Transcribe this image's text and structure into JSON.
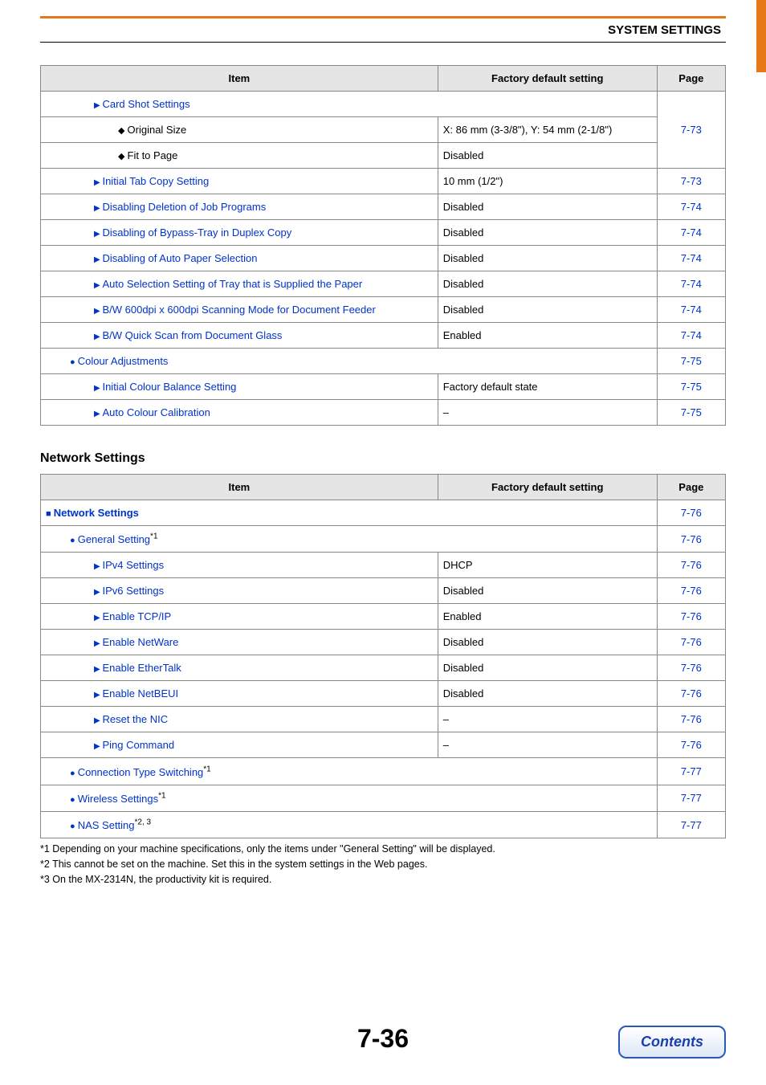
{
  "header": {
    "title": "SYSTEM SETTINGS"
  },
  "table1": {
    "headers": {
      "item": "Item",
      "default": "Factory default setting",
      "page": "Page"
    },
    "rows": [
      {
        "kind": "span2",
        "marker": "tri",
        "link": true,
        "indent": 2,
        "label": "Card Shot Settings",
        "page": ""
      },
      {
        "kind": "row",
        "marker": "dia",
        "link": false,
        "indent": 3,
        "label": "Original Size",
        "default": "X: 86 mm (3-3/8\"), Y: 54 mm (2-1/8\")",
        "page": "7-73",
        "cls": "no-bottom"
      },
      {
        "kind": "row",
        "marker": "dia",
        "link": false,
        "indent": 3,
        "label": "Fit to Page",
        "default": "Disabled",
        "page": "",
        "cls": "no-top"
      },
      {
        "kind": "row",
        "marker": "tri",
        "link": true,
        "indent": 2,
        "label": "Initial Tab Copy Setting",
        "default": "10 mm (1/2\")",
        "page": "7-73"
      },
      {
        "kind": "row",
        "marker": "tri",
        "link": true,
        "indent": 2,
        "label": "Disabling Deletion of Job Programs",
        "default": "Disabled",
        "page": "7-74"
      },
      {
        "kind": "row",
        "marker": "tri",
        "link": true,
        "indent": 2,
        "label": "Disabling of Bypass-Tray in Duplex Copy",
        "default": "Disabled",
        "page": "7-74"
      },
      {
        "kind": "row",
        "marker": "tri",
        "link": true,
        "indent": 2,
        "label": "Disabling of Auto Paper Selection",
        "default": "Disabled",
        "page": "7-74"
      },
      {
        "kind": "row",
        "marker": "tri",
        "link": true,
        "indent": 2,
        "label": "Auto Selection Setting of Tray that is Supplied the Paper",
        "default": "Disabled",
        "page": "7-74"
      },
      {
        "kind": "row",
        "marker": "tri",
        "link": true,
        "indent": 2,
        "label": "B/W 600dpi x 600dpi Scanning Mode for Document Feeder",
        "default": "Disabled",
        "page": "7-74"
      },
      {
        "kind": "row",
        "marker": "tri",
        "link": true,
        "indent": 2,
        "label": "B/W Quick Scan from Document Glass",
        "default": "Enabled",
        "page": "7-74"
      },
      {
        "kind": "span2",
        "marker": "dot",
        "link": true,
        "indent": 1,
        "label": "Colour Adjustments",
        "page": "7-75"
      },
      {
        "kind": "row",
        "marker": "tri",
        "link": true,
        "indent": 2,
        "label": "Initial Colour Balance Setting",
        "default": "Factory default state",
        "page": "7-75"
      },
      {
        "kind": "row",
        "marker": "tri",
        "link": true,
        "indent": 2,
        "label": "Auto Colour Calibration",
        "default": "–",
        "page": "7-75"
      }
    ]
  },
  "section2_title": "Network Settings",
  "table2": {
    "headers": {
      "item": "Item",
      "default": "Factory default setting",
      "page": "Page"
    },
    "rows": [
      {
        "kind": "span2",
        "marker": "sq",
        "link": true,
        "indent": 0,
        "label": "Network Settings",
        "page": "7-76",
        "bold": true
      },
      {
        "kind": "span2",
        "marker": "dot",
        "link": true,
        "indent": 1,
        "label": "General Setting",
        "sup": "*1",
        "page": "7-76"
      },
      {
        "kind": "row",
        "marker": "tri",
        "link": true,
        "indent": 2,
        "label": "IPv4 Settings",
        "default": "DHCP",
        "page": "7-76"
      },
      {
        "kind": "row",
        "marker": "tri",
        "link": true,
        "indent": 2,
        "label": "IPv6 Settings",
        "default": "Disabled",
        "page": "7-76"
      },
      {
        "kind": "row",
        "marker": "tri",
        "link": true,
        "indent": 2,
        "label": "Enable TCP/IP",
        "default": "Enabled",
        "page": "7-76"
      },
      {
        "kind": "row",
        "marker": "tri",
        "link": true,
        "indent": 2,
        "label": "Enable NetWare",
        "default": "Disabled",
        "page": "7-76"
      },
      {
        "kind": "row",
        "marker": "tri",
        "link": true,
        "indent": 2,
        "label": "Enable EtherTalk",
        "default": "Disabled",
        "page": "7-76"
      },
      {
        "kind": "row",
        "marker": "tri",
        "link": true,
        "indent": 2,
        "label": "Enable NetBEUI",
        "default": "Disabled",
        "page": "7-76"
      },
      {
        "kind": "row",
        "marker": "tri",
        "link": true,
        "indent": 2,
        "label": "Reset the NIC",
        "default": "–",
        "page": "7-76"
      },
      {
        "kind": "row",
        "marker": "tri",
        "link": true,
        "indent": 2,
        "label": "Ping Command",
        "default": "–",
        "page": "7-76"
      },
      {
        "kind": "span2",
        "marker": "dot",
        "link": true,
        "indent": 1,
        "label": "Connection Type Switching",
        "sup": "*1",
        "page": "7-77"
      },
      {
        "kind": "span2",
        "marker": "dot",
        "link": true,
        "indent": 1,
        "label": "Wireless Settings",
        "sup": "*1",
        "page": "7-77"
      },
      {
        "kind": "span2",
        "marker": "dot",
        "link": true,
        "indent": 1,
        "label": "NAS Setting",
        "sup": "*2, 3",
        "page": "7-77"
      }
    ]
  },
  "footnotes": [
    "*1  Depending on your machine specifications, only the items under \"General Setting\" will be displayed.",
    "*2  This cannot be set on the machine. Set this in the system settings in the Web pages.",
    "*3  On the MX-2314N, the productivity kit is required."
  ],
  "page_number": "7-36",
  "contents_label": "Contents"
}
